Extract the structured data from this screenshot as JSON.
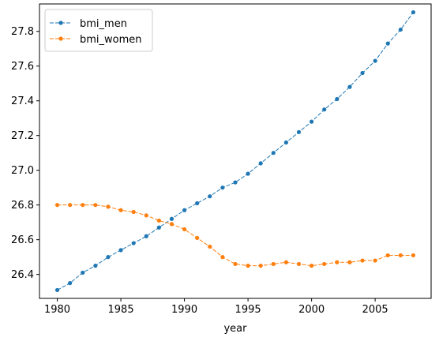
{
  "chart_data": {
    "type": "line",
    "xlabel": "year",
    "ylabel": "",
    "title": "",
    "xlim": [
      1978.6,
      2009.4
    ],
    "ylim": [
      26.262,
      27.958
    ],
    "xticks": [
      1980,
      1985,
      1990,
      1995,
      2000,
      2005
    ],
    "yticks": [
      26.4,
      26.6,
      26.8,
      27.0,
      27.2,
      27.4,
      27.6,
      27.8
    ],
    "grid": false,
    "legend_position": "top-left",
    "x": [
      1980,
      1981,
      1982,
      1983,
      1984,
      1985,
      1986,
      1987,
      1988,
      1989,
      1990,
      1991,
      1992,
      1993,
      1994,
      1995,
      1996,
      1997,
      1998,
      1999,
      2000,
      2001,
      2002,
      2003,
      2004,
      2005,
      2006,
      2007,
      2008
    ],
    "series": [
      {
        "name": "bmi_men",
        "color": "#1f77b4",
        "values": [
          26.31,
          26.35,
          26.41,
          26.45,
          26.5,
          26.54,
          26.58,
          26.62,
          26.67,
          26.72,
          26.77,
          26.81,
          26.85,
          26.9,
          26.93,
          26.98,
          27.04,
          27.1,
          27.16,
          27.22,
          27.28,
          27.35,
          27.41,
          27.48,
          27.56,
          27.63,
          27.73,
          27.81,
          27.91
        ]
      },
      {
        "name": "bmi_women",
        "color": "#ff7f0e",
        "values": [
          26.8,
          26.8,
          26.8,
          26.8,
          26.79,
          26.77,
          26.76,
          26.74,
          26.71,
          26.69,
          26.66,
          26.61,
          26.56,
          26.5,
          26.46,
          26.45,
          26.45,
          26.46,
          26.47,
          26.46,
          26.45,
          26.46,
          26.47,
          26.47,
          26.48,
          26.48,
          26.51,
          26.51,
          26.51
        ]
      }
    ]
  }
}
